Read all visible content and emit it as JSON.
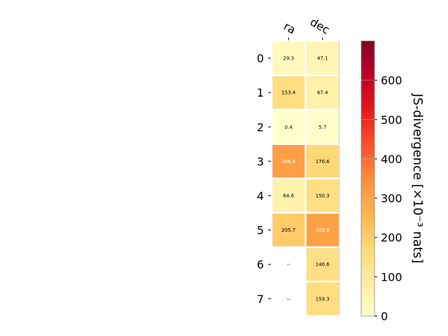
{
  "chart_data": {
    "type": "heatmap",
    "columns": [
      "ra",
      "dec"
    ],
    "rows": [
      "0",
      "1",
      "2",
      "3",
      "4",
      "5",
      "6",
      "7"
    ],
    "values": [
      [
        29.3,
        47.1
      ],
      [
        153.4,
        67.4
      ],
      [
        0.4,
        5.7
      ],
      [
        306.4,
        176.6
      ],
      [
        64.6,
        150.3
      ],
      [
        205.7,
        303.8
      ],
      [
        null,
        146.6
      ],
      [
        null,
        159.3
      ]
    ],
    "missing_label": "--",
    "colorbar": {
      "label": "JS-divergence [×10⁻³ nats]",
      "range": [
        0,
        700
      ],
      "ticks": [
        0,
        100,
        200,
        300,
        400,
        500,
        600
      ],
      "colormap": "YlOrRd"
    }
  }
}
